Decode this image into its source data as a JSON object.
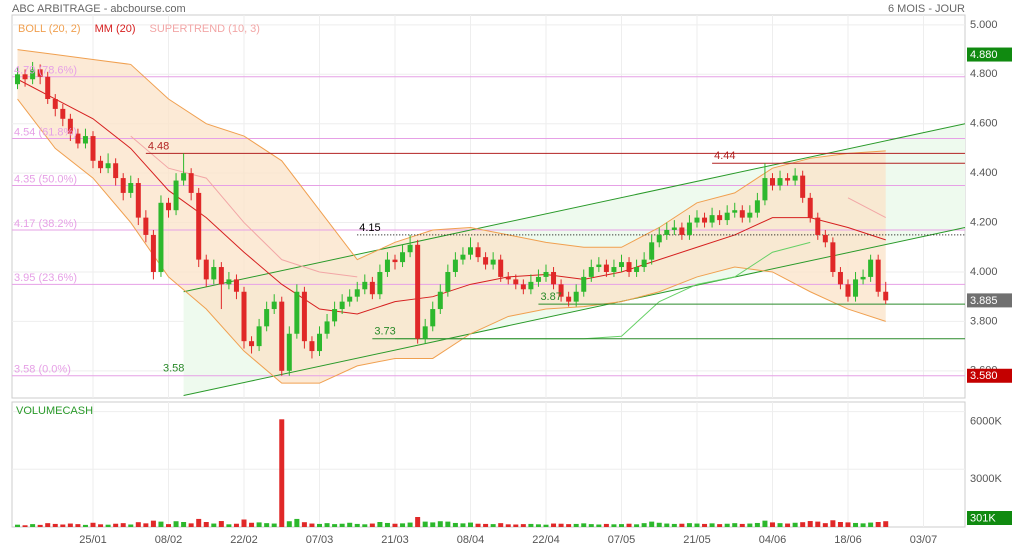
{
  "chart_data": {
    "type": "candlestick",
    "title": "ABC ARBITRAGE - abcbourse.com",
    "period": "6 MOIS - JOUR",
    "up_color": "#2db82d",
    "down_color": "#e02828",
    "xlim": [
      -0.73,
      125.5
    ],
    "xticks": [
      {
        "value": 10,
        "label": "25/01"
      },
      {
        "value": 20,
        "label": "08/02"
      },
      {
        "value": 30,
        "label": "22/02"
      },
      {
        "value": 40,
        "label": "07/03"
      },
      {
        "value": 50,
        "label": "21/03"
      },
      {
        "value": 60,
        "label": "08/04"
      },
      {
        "value": 70,
        "label": "22/04"
      },
      {
        "value": 80,
        "label": "07/05"
      },
      {
        "value": 90,
        "label": "21/05"
      },
      {
        "value": 100,
        "label": "04/06"
      },
      {
        "value": 110,
        "label": "18/06"
      },
      {
        "value": 120,
        "label": "03/07"
      }
    ],
    "ylim": [
      3.49,
      5.04
    ],
    "yticks": [
      {
        "value": 5.0,
        "label": "5.000"
      },
      {
        "value": 4.8,
        "label": "4.800"
      },
      {
        "value": 4.6,
        "label": "4.600"
      },
      {
        "value": 4.4,
        "label": "4.400"
      },
      {
        "value": 4.2,
        "label": "4.200"
      },
      {
        "value": 4.0,
        "label": "4.000"
      },
      {
        "value": 3.8,
        "label": "3.800"
      },
      {
        "value": 3.6,
        "label": "3.600"
      }
    ],
    "grid": true,
    "candles": [
      [
        4.76,
        4.83,
        4.74,
        4.8
      ],
      [
        4.8,
        4.82,
        4.75,
        4.78
      ],
      [
        4.78,
        4.85,
        4.76,
        4.82
      ],
      [
        4.82,
        4.84,
        4.76,
        4.79
      ],
      [
        4.79,
        4.81,
        4.68,
        4.7
      ],
      [
        4.7,
        4.72,
        4.63,
        4.66
      ],
      [
        4.66,
        4.68,
        4.59,
        4.62
      ],
      [
        4.62,
        4.64,
        4.53,
        4.56
      ],
      [
        4.56,
        4.58,
        4.5,
        4.52
      ],
      [
        4.52,
        4.58,
        4.5,
        4.55
      ],
      [
        4.55,
        4.57,
        4.42,
        4.45
      ],
      [
        4.45,
        4.47,
        4.4,
        4.42
      ],
      [
        4.42,
        4.48,
        4.4,
        4.44
      ],
      [
        4.44,
        4.46,
        4.35,
        4.38
      ],
      [
        4.38,
        4.4,
        4.29,
        4.32
      ],
      [
        4.32,
        4.39,
        4.3,
        4.36
      ],
      [
        4.36,
        4.38,
        4.19,
        4.22
      ],
      [
        4.22,
        4.25,
        4.12,
        4.15
      ],
      [
        4.15,
        4.17,
        3.97,
        4.0
      ],
      [
        4.0,
        4.31,
        3.98,
        4.28
      ],
      [
        4.28,
        4.3,
        4.22,
        4.25
      ],
      [
        4.25,
        4.4,
        4.23,
        4.37
      ],
      [
        4.37,
        4.48,
        4.35,
        4.4
      ],
      [
        4.4,
        4.42,
        4.29,
        4.32
      ],
      [
        4.32,
        4.34,
        4.02,
        4.05
      ],
      [
        4.05,
        4.07,
        3.94,
        3.97
      ],
      [
        3.97,
        4.05,
        3.95,
        4.02
      ],
      [
        4.02,
        4.04,
        3.85,
        3.95
      ],
      [
        3.95,
        4.0,
        3.93,
        3.97
      ],
      [
        3.97,
        3.99,
        3.89,
        3.92
      ],
      [
        3.92,
        3.94,
        3.69,
        3.72
      ],
      [
        3.72,
        3.74,
        3.67,
        3.7
      ],
      [
        3.7,
        3.81,
        3.68,
        3.78
      ],
      [
        3.78,
        3.88,
        3.76,
        3.85
      ],
      [
        3.85,
        3.91,
        3.83,
        3.88
      ],
      [
        3.88,
        3.9,
        3.58,
        3.6
      ],
      [
        3.6,
        3.78,
        3.58,
        3.75
      ],
      [
        3.75,
        3.95,
        3.73,
        3.92
      ],
      [
        3.92,
        3.94,
        3.69,
        3.72
      ],
      [
        3.72,
        3.74,
        3.65,
        3.68
      ],
      [
        3.68,
        3.78,
        3.66,
        3.75
      ],
      [
        3.75,
        3.83,
        3.73,
        3.8
      ],
      [
        3.8,
        3.88,
        3.78,
        3.85
      ],
      [
        3.85,
        3.91,
        3.83,
        3.88
      ],
      [
        3.88,
        3.93,
        3.86,
        3.9
      ],
      [
        3.9,
        3.96,
        3.88,
        3.93
      ],
      [
        3.93,
        3.99,
        3.91,
        3.96
      ],
      [
        3.96,
        3.98,
        3.89,
        3.91
      ],
      [
        3.91,
        4.03,
        3.89,
        4.0
      ],
      [
        4.0,
        4.08,
        3.98,
        4.05
      ],
      [
        4.05,
        4.07,
        4.01,
        4.04
      ],
      [
        4.04,
        4.11,
        4.02,
        4.08
      ],
      [
        4.08,
        4.15,
        4.06,
        4.11
      ],
      [
        4.11,
        4.13,
        3.71,
        3.73
      ],
      [
        3.73,
        3.81,
        3.71,
        3.78
      ],
      [
        3.78,
        3.88,
        3.76,
        3.85
      ],
      [
        3.85,
        3.95,
        3.83,
        3.92
      ],
      [
        3.92,
        4.03,
        3.9,
        4.0
      ],
      [
        4.0,
        4.08,
        3.98,
        4.05
      ],
      [
        4.05,
        4.1,
        4.03,
        4.07
      ],
      [
        4.07,
        4.14,
        4.05,
        4.1
      ],
      [
        4.1,
        4.12,
        4.04,
        4.06
      ],
      [
        4.06,
        4.08,
        4.01,
        4.03
      ],
      [
        4.03,
        4.08,
        4.01,
        4.05
      ],
      [
        4.05,
        4.07,
        3.96,
        3.98
      ],
      [
        3.98,
        4.0,
        3.95,
        3.97
      ],
      [
        3.97,
        3.99,
        3.93,
        3.95
      ],
      [
        3.95,
        3.97,
        3.91,
        3.93
      ],
      [
        3.93,
        3.99,
        3.91,
        3.96
      ],
      [
        3.96,
        4.01,
        3.94,
        3.98
      ],
      [
        3.98,
        4.03,
        3.96,
        4.0
      ],
      [
        4.0,
        4.02,
        3.93,
        3.95
      ],
      [
        3.95,
        3.97,
        3.88,
        3.9
      ],
      [
        3.9,
        3.92,
        3.86,
        3.88
      ],
      [
        3.88,
        3.95,
        3.86,
        3.92
      ],
      [
        3.92,
        4.01,
        3.9,
        3.98
      ],
      [
        3.98,
        4.05,
        3.96,
        4.02
      ],
      [
        4.02,
        4.06,
        4.0,
        4.03
      ],
      [
        4.03,
        4.05,
        3.98,
        4.0
      ],
      [
        4.0,
        4.05,
        3.98,
        4.02
      ],
      [
        4.02,
        4.07,
        4.0,
        4.04
      ],
      [
        4.04,
        4.06,
        3.98,
        4.0
      ],
      [
        4.0,
        4.05,
        3.98,
        4.02
      ],
      [
        4.02,
        4.08,
        4.0,
        4.05
      ],
      [
        4.05,
        4.15,
        4.03,
        4.12
      ],
      [
        4.12,
        4.18,
        4.1,
        4.15
      ],
      [
        4.15,
        4.2,
        4.13,
        4.17
      ],
      [
        4.17,
        4.21,
        4.15,
        4.18
      ],
      [
        4.18,
        4.2,
        4.13,
        4.15
      ],
      [
        4.15,
        4.23,
        4.13,
        4.2
      ],
      [
        4.2,
        4.25,
        4.18,
        4.22
      ],
      [
        4.22,
        4.24,
        4.18,
        4.2
      ],
      [
        4.2,
        4.26,
        4.18,
        4.23
      ],
      [
        4.23,
        4.25,
        4.19,
        4.21
      ],
      [
        4.21,
        4.27,
        4.19,
        4.24
      ],
      [
        4.24,
        4.28,
        4.22,
        4.25
      ],
      [
        4.25,
        4.27,
        4.2,
        4.22
      ],
      [
        4.22,
        4.27,
        4.2,
        4.24
      ],
      [
        4.24,
        4.32,
        4.22,
        4.29
      ],
      [
        4.29,
        4.44,
        4.27,
        4.38
      ],
      [
        4.38,
        4.4,
        4.33,
        4.35
      ],
      [
        4.35,
        4.41,
        4.33,
        4.38
      ],
      [
        4.38,
        4.4,
        4.35,
        4.37
      ],
      [
        4.37,
        4.42,
        4.35,
        4.39
      ],
      [
        4.39,
        4.41,
        4.28,
        4.3
      ],
      [
        4.3,
        4.32,
        4.2,
        4.22
      ],
      [
        4.22,
        4.24,
        4.13,
        4.15
      ],
      [
        4.15,
        4.17,
        4.1,
        4.12
      ],
      [
        4.12,
        4.14,
        3.98,
        4.0
      ],
      [
        4.0,
        4.02,
        3.93,
        3.95
      ],
      [
        3.95,
        3.97,
        3.88,
        3.9
      ],
      [
        3.9,
        4.0,
        3.88,
        3.97
      ],
      [
        3.97,
        4.01,
        3.95,
        3.98
      ],
      [
        3.98,
        4.07,
        3.96,
        4.05
      ],
      [
        4.05,
        4.07,
        3.9,
        3.92
      ],
      [
        3.92,
        3.96,
        3.87,
        3.885
      ]
    ],
    "indicators": {
      "x": [
        0,
        5,
        10,
        15,
        20,
        25,
        30,
        35,
        40,
        45,
        50,
        55,
        60,
        65,
        70,
        75,
        80,
        85,
        90,
        95,
        100,
        105,
        110,
        115
      ],
      "series": [
        {
          "name": "BOLL (20, 2)",
          "color": "#f0a050",
          "fill": "#fbe3c8",
          "upper": [
            4.9,
            4.88,
            4.86,
            4.84,
            4.7,
            4.6,
            4.55,
            4.45,
            4.25,
            4.05,
            4.12,
            4.17,
            4.18,
            4.15,
            4.12,
            4.1,
            4.1,
            4.18,
            4.28,
            4.32,
            4.42,
            4.46,
            4.48,
            4.49
          ],
          "lower": [
            4.7,
            4.5,
            4.38,
            4.2,
            3.98,
            3.85,
            3.68,
            3.55,
            3.55,
            3.62,
            3.65,
            3.65,
            3.75,
            3.82,
            3.85,
            3.86,
            3.88,
            3.92,
            3.98,
            4.02,
            4.0,
            3.92,
            3.85,
            3.8
          ]
        },
        {
          "name": "MM (20)",
          "color": "#d62020",
          "values": [
            4.78,
            4.7,
            4.62,
            4.5,
            4.33,
            4.22,
            4.08,
            3.95,
            3.85,
            3.83,
            3.88,
            3.9,
            3.95,
            3.98,
            3.99,
            3.97,
            4.0,
            4.05,
            4.1,
            4.15,
            4.22,
            4.22,
            4.18,
            4.13
          ]
        },
        {
          "name": "SUPERTREND (10, 3)",
          "color": "#f2a6a6",
          "color_up": "#66d066",
          "values": [
            null,
            null,
            null,
            4.55,
            4.42,
            4.38,
            4.2,
            4.05,
            4.0,
            3.98,
            null,
            null,
            null,
            null,
            null,
            null,
            null,
            null,
            null,
            null,
            null,
            null,
            4.3,
            4.22
          ],
          "values_up": [
            null,
            null,
            null,
            null,
            null,
            null,
            null,
            null,
            null,
            null,
            3.73,
            3.73,
            3.73,
            3.73,
            3.73,
            3.73,
            3.74,
            3.88,
            3.95,
            3.98,
            4.08,
            4.12,
            null,
            null
          ]
        }
      ]
    },
    "fibonacci": {
      "color": "#e6a0e6",
      "levels": [
        {
          "value": 4.79,
          "label": "4.79 (78.6%)"
        },
        {
          "value": 4.54,
          "label": "4.54 (61.8%)"
        },
        {
          "value": 4.35,
          "label": "4.35 (50.0%)"
        },
        {
          "value": 4.17,
          "label": "4.17 (38.2%)"
        },
        {
          "value": 3.95,
          "label": "3.95 (23.6%)"
        },
        {
          "value": 3.58,
          "label": "3.58 (0.0%)"
        }
      ]
    },
    "channel": {
      "color": "#2a9a2a",
      "fill": "#eefaee",
      "x": [
        22,
        125.5
      ],
      "upper": [
        3.92,
        4.6
      ],
      "lower": [
        3.5,
        4.18
      ]
    },
    "levels": [
      {
        "label": "4.48",
        "value": 4.48,
        "from": 17,
        "color": "#b22222"
      },
      {
        "label": "4.44",
        "value": 4.44,
        "from": 92,
        "color": "#b22222"
      },
      {
        "label": "4.15",
        "value": 4.15,
        "from": 45,
        "color": "#000000",
        "dotted": true
      },
      {
        "label": "3.87",
        "value": 3.87,
        "from": 69,
        "color": "#2a8a2a"
      },
      {
        "label": "3.73",
        "value": 3.73,
        "from": 47,
        "color": "#2a8a2a"
      },
      {
        "label": "3.58",
        "value": 3.58,
        "from": 19,
        "color": "#2a8a2a",
        "no_line": true
      }
    ],
    "markers": [
      {
        "value": 4.88,
        "label": "4.880",
        "color": "#108a10"
      },
      {
        "value": 3.885,
        "label": "3.885",
        "color": "#707070"
      },
      {
        "value": 3.58,
        "label": "3.580",
        "color": "#c40000"
      }
    ],
    "volume": {
      "title": "VOLUMECASH",
      "title_color": "#2a9a2a",
      "ylim": [
        0,
        6500
      ],
      "yticks": [
        {
          "value": 6000,
          "label": "6000K"
        },
        {
          "value": 3000,
          "label": "3000K"
        }
      ],
      "marker": {
        "value": 301,
        "label": "301K",
        "color": "#108a10"
      },
      "values": [
        120,
        90,
        150,
        110,
        200,
        160,
        130,
        180,
        150,
        110,
        220,
        140,
        120,
        170,
        200,
        130,
        250,
        190,
        330,
        280,
        150,
        300,
        260,
        190,
        420,
        260,
        180,
        310,
        140,
        170,
        390,
        220,
        240,
        200,
        180,
        5600,
        300,
        420,
        250,
        180,
        160,
        200,
        150,
        170,
        220,
        160,
        140,
        180,
        260,
        210,
        170,
        190,
        230,
        520,
        280,
        240,
        300,
        280,
        210,
        190,
        230,
        170,
        160,
        150,
        200,
        140,
        130,
        150,
        160,
        140,
        120,
        180,
        170,
        150,
        160,
        190,
        150,
        130,
        160,
        140,
        150,
        170,
        140,
        200,
        280,
        220,
        180,
        160,
        170,
        200,
        180,
        160,
        190,
        150,
        170,
        200,
        160,
        180,
        210,
        330,
        240,
        200,
        180,
        220,
        250,
        310,
        280,
        200,
        350,
        260,
        240,
        210,
        190,
        230,
        260,
        301
      ]
    }
  }
}
